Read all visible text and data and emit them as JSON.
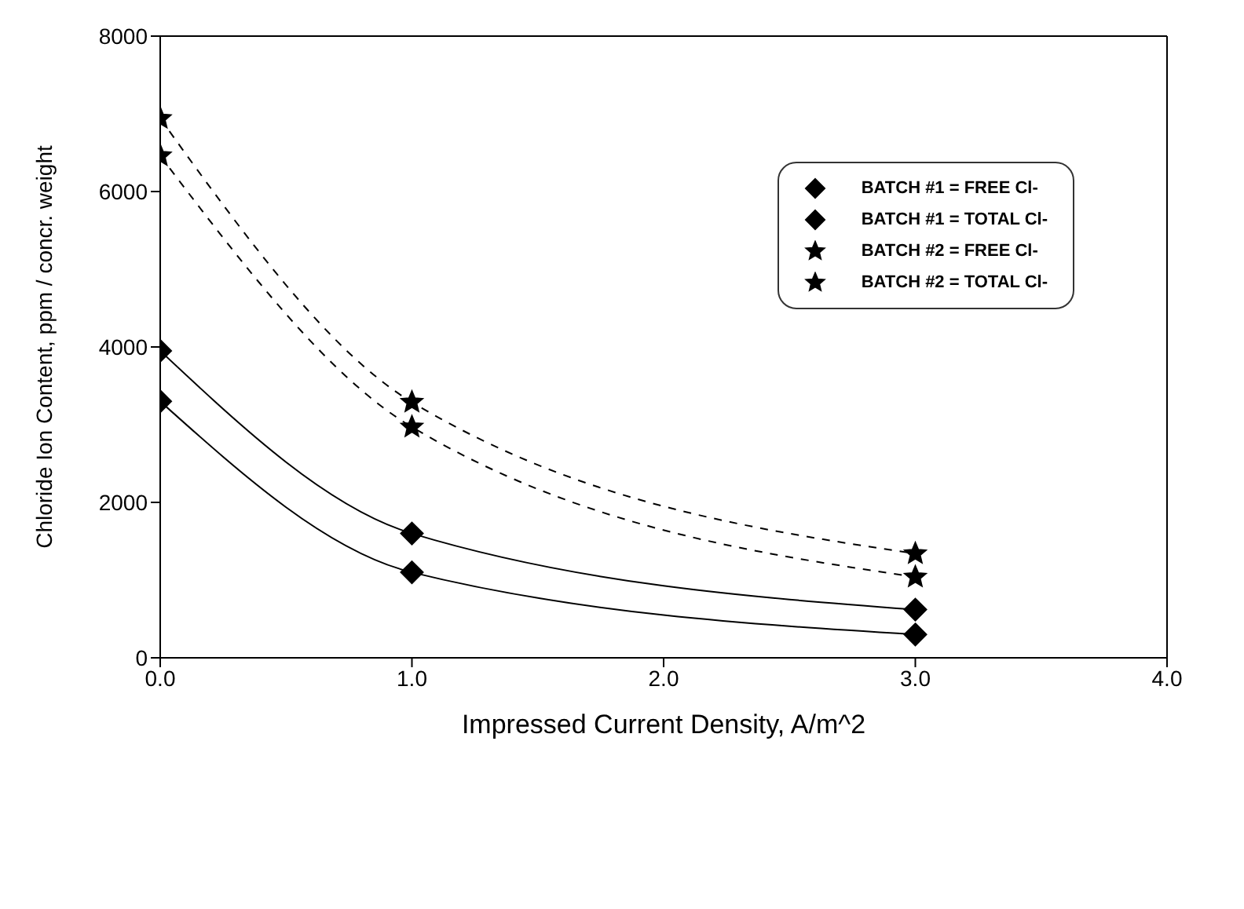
{
  "chart_data": {
    "type": "line",
    "xlabel": "Impressed Current Density,  A/m^2",
    "ylabel": "Chloride Ion Content,  ppm / concr. weight",
    "x": [
      0,
      1,
      3
    ],
    "xlim": [
      0,
      4
    ],
    "xticks": [
      {
        "value": 0,
        "label": "0.0"
      },
      {
        "value": 1,
        "label": "1.0"
      },
      {
        "value": 2,
        "label": "2.0"
      },
      {
        "value": 3,
        "label": "3.0"
      },
      {
        "value": 4,
        "label": "4.0"
      }
    ],
    "ylim": [
      0,
      8000
    ],
    "yticks": [
      0,
      2000,
      4000,
      6000,
      8000
    ],
    "legend": "top right",
    "series": [
      {
        "name": "BATCH #1 = FREE Cl-",
        "color": "#000000",
        "values": [
          3300,
          1100,
          300
        ],
        "marker": "diamond",
        "line_style": "solid"
      },
      {
        "name": "BATCH #1 = TOTAL Cl-",
        "color": "#000000",
        "values": [
          3950,
          1600,
          620
        ],
        "marker": "diamond",
        "line_style": "solid"
      },
      {
        "name": "BATCH #2 = FREE Cl-",
        "color": "#000000",
        "values": [
          6460,
          2970,
          1040
        ],
        "marker": "star",
        "line_style": "dashed"
      },
      {
        "name": "BATCH #2 = TOTAL Cl-",
        "color": "#000000",
        "values": [
          6940,
          3290,
          1340
        ],
        "marker": "star",
        "line_style": "dashed"
      }
    ]
  }
}
